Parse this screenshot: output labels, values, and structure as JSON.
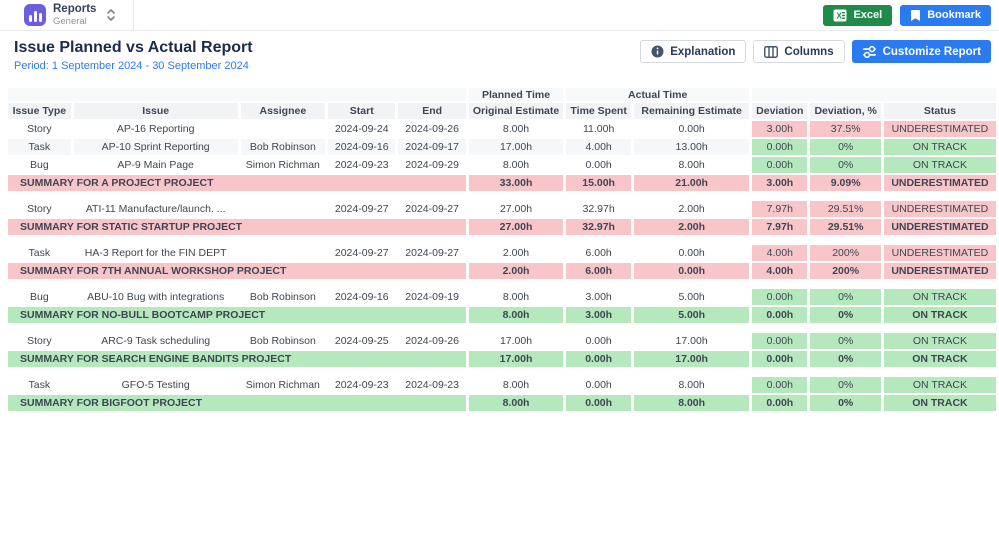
{
  "topbar": {
    "app_title": "Reports",
    "app_subtitle": "General",
    "excel_label": "Excel",
    "bookmark_label": "Bookmark"
  },
  "header": {
    "title": "Issue Planned vs Actual Report",
    "period": "Period: 1 September 2024 - 30 September 2024",
    "explanation_label": "Explanation",
    "columns_label": "Columns",
    "customize_label": "Customize Report"
  },
  "icons": {
    "app": "bar-chart-icon",
    "switcher": "chevron-updown-icon",
    "excel": "excel-icon",
    "bookmark": "bookmark-icon",
    "explanation": "info-icon",
    "columns": "columns-icon",
    "customize": "sliders-icon"
  },
  "colors": {
    "accent_blue": "#2a7bf2",
    "excel_green": "#1f8a4a",
    "app_purple": "#6d5ee0",
    "pink": "#f8c6c8",
    "green": "#b5e8bd"
  },
  "table": {
    "group_headers": {
      "planned": "Planned Time",
      "actual": "Actual Time"
    },
    "columns": [
      "Issue Type",
      "Issue",
      "Assignee",
      "Start",
      "End",
      "Original Estimate",
      "Time Spent",
      "Remaining Estimate",
      "Deviation",
      "Deviation, %",
      "Status"
    ],
    "groups": [
      {
        "rows": [
          {
            "issue_type": "Story",
            "issue": "AP-16 Reporting",
            "assignee": "",
            "start": "2024-09-24",
            "end": "2024-09-26",
            "original_estimate": "8.00h",
            "time_spent": "11.00h",
            "remaining_estimate": "0.00h",
            "deviation": "3.00h",
            "deviation_pct": "37.5%",
            "status": "UNDERESTIMATED",
            "tone": "pink"
          },
          {
            "issue_type": "Task",
            "issue": "AP-10 Sprint Reporting",
            "assignee": "Bob Robinson",
            "start": "2024-09-16",
            "end": "2024-09-17",
            "original_estimate": "17.00h",
            "time_spent": "4.00h",
            "remaining_estimate": "13.00h",
            "deviation": "0.00h",
            "deviation_pct": "0%",
            "status": "ON TRACK",
            "tone": "green"
          },
          {
            "issue_type": "Bug",
            "issue": "AP-9 Main Page",
            "assignee": "Simon Richman",
            "start": "2024-09-23",
            "end": "2024-09-29",
            "original_estimate": "8.00h",
            "time_spent": "0.00h",
            "remaining_estimate": "8.00h",
            "deviation": "0.00h",
            "deviation_pct": "0%",
            "status": "ON TRACK",
            "tone": "green"
          }
        ],
        "summary": {
          "label": "SUMMARY FOR A PROJECT PROJECT",
          "original_estimate": "33.00h",
          "time_spent": "15.00h",
          "remaining_estimate": "21.00h",
          "deviation": "3.00h",
          "deviation_pct": "9.09%",
          "status": "UNDERESTIMATED",
          "tone": "pink"
        }
      },
      {
        "rows": [
          {
            "issue_type": "Story",
            "issue": "ATI-11 Manufacture/launch. ...",
            "assignee": "",
            "start": "2024-09-27",
            "end": "2024-09-27",
            "original_estimate": "27.00h",
            "time_spent": "32.97h",
            "remaining_estimate": "2.00h",
            "deviation": "7.97h",
            "deviation_pct": "29.51%",
            "status": "UNDERESTIMATED",
            "tone": "pink"
          }
        ],
        "summary": {
          "label": "SUMMARY FOR STATIC STARTUP PROJECT",
          "original_estimate": "27.00h",
          "time_spent": "32.97h",
          "remaining_estimate": "2.00h",
          "deviation": "7.97h",
          "deviation_pct": "29.51%",
          "status": "UNDERESTIMATED",
          "tone": "pink"
        }
      },
      {
        "rows": [
          {
            "issue_type": "Task",
            "issue": "HA-3 Report for the FIN DEPT",
            "assignee": "",
            "start": "2024-09-27",
            "end": "2024-09-27",
            "original_estimate": "2.00h",
            "time_spent": "6.00h",
            "remaining_estimate": "0.00h",
            "deviation": "4.00h",
            "deviation_pct": "200%",
            "status": "UNDERESTIMATED",
            "tone": "pink"
          }
        ],
        "summary": {
          "label": "SUMMARY FOR 7TH ANNUAL WORKSHOP PROJECT",
          "original_estimate": "2.00h",
          "time_spent": "6.00h",
          "remaining_estimate": "0.00h",
          "deviation": "4.00h",
          "deviation_pct": "200%",
          "status": "UNDERESTIMATED",
          "tone": "pink"
        }
      },
      {
        "rows": [
          {
            "issue_type": "Bug",
            "issue": "ABU-10 Bug with integrations",
            "assignee": "Bob Robinson",
            "start": "2024-09-16",
            "end": "2024-09-19",
            "original_estimate": "8.00h",
            "time_spent": "3.00h",
            "remaining_estimate": "5.00h",
            "deviation": "0.00h",
            "deviation_pct": "0%",
            "status": "ON TRACK",
            "tone": "green"
          }
        ],
        "summary": {
          "label": "SUMMARY FOR NO-BULL BOOTCAMP PROJECT",
          "original_estimate": "8.00h",
          "time_spent": "3.00h",
          "remaining_estimate": "5.00h",
          "deviation": "0.00h",
          "deviation_pct": "0%",
          "status": "ON TRACK",
          "tone": "green"
        }
      },
      {
        "rows": [
          {
            "issue_type": "Story",
            "issue": "ARC-9 Task scheduling",
            "assignee": "Bob Robinson",
            "start": "2024-09-25",
            "end": "2024-09-26",
            "original_estimate": "17.00h",
            "time_spent": "0.00h",
            "remaining_estimate": "17.00h",
            "deviation": "0.00h",
            "deviation_pct": "0%",
            "status": "ON TRACK",
            "tone": "green"
          }
        ],
        "summary": {
          "label": "SUMMARY FOR SEARCH ENGINE BANDITS PROJECT",
          "original_estimate": "17.00h",
          "time_spent": "0.00h",
          "remaining_estimate": "17.00h",
          "deviation": "0.00h",
          "deviation_pct": "0%",
          "status": "ON TRACK",
          "tone": "green"
        }
      },
      {
        "rows": [
          {
            "issue_type": "Task",
            "issue": "GFO-5 Testing",
            "assignee": "Simon Richman",
            "start": "2024-09-23",
            "end": "2024-09-23",
            "original_estimate": "8.00h",
            "time_spent": "0.00h",
            "remaining_estimate": "8.00h",
            "deviation": "0.00h",
            "deviation_pct": "0%",
            "status": "ON TRACK",
            "tone": "green"
          }
        ],
        "summary": {
          "label": "SUMMARY FOR BIGFOOT PROJECT",
          "original_estimate": "8.00h",
          "time_spent": "0.00h",
          "remaining_estimate": "8.00h",
          "deviation": "0.00h",
          "deviation_pct": "0%",
          "status": "ON TRACK",
          "tone": "green"
        }
      }
    ]
  }
}
